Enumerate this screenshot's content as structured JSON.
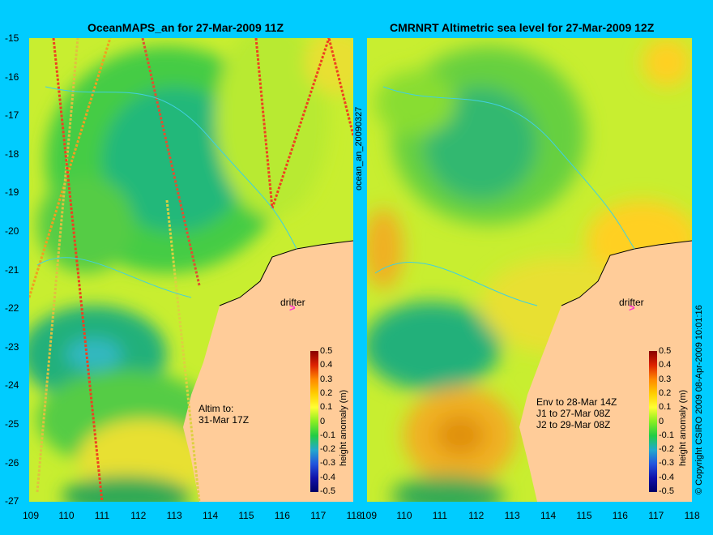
{
  "left_map": {
    "title": "OceanMAPS_an for 27-Mar-2009 11Z",
    "x_ticks": [
      "109",
      "110",
      "111",
      "112",
      "113",
      "114",
      "115",
      "116",
      "117",
      "118"
    ],
    "y_ticks": [
      "-15",
      "-16",
      "-17",
      "-18",
      "-19",
      "-20",
      "-21",
      "-22",
      "-23",
      "-24",
      "-25",
      "-26",
      "-27"
    ],
    "drifter_label": "drifter",
    "note_lines": [
      "Altim to:",
      "31-Mar 17Z"
    ],
    "colorbar_ticks": [
      "0.5",
      "0.4",
      "0.3",
      "0.2",
      "0.1",
      "0",
      "-0.1",
      "-0.2",
      "-0.3",
      "-0.4",
      "-0.5"
    ],
    "colorbar_label": "height anomaly (m)"
  },
  "right_map": {
    "title": "CMRNRT Altimetric sea level  for 27-Mar-2009 12Z",
    "x_ticks": [
      "109",
      "110",
      "111",
      "112",
      "113",
      "114",
      "115",
      "116",
      "117",
      "118"
    ],
    "drifter_label": "drifter",
    "note_lines": [
      "Env to 28-Mar 14Z",
      "J1 to 27-Mar 08Z",
      "J2 to 29-Mar 08Z"
    ],
    "colorbar_ticks": [
      "0.5",
      "0.4",
      "0.3",
      "0.2",
      "0.1",
      "0",
      "-0.1",
      "-0.2",
      "-0.3",
      "-0.4",
      "-0.5"
    ],
    "colorbar_label": "height anomaly (m)"
  },
  "side_label_left": "ocean_an_20090327",
  "side_label_right": "© Copyright CSIRO 2009   08-Apr-2009 10:01:16"
}
